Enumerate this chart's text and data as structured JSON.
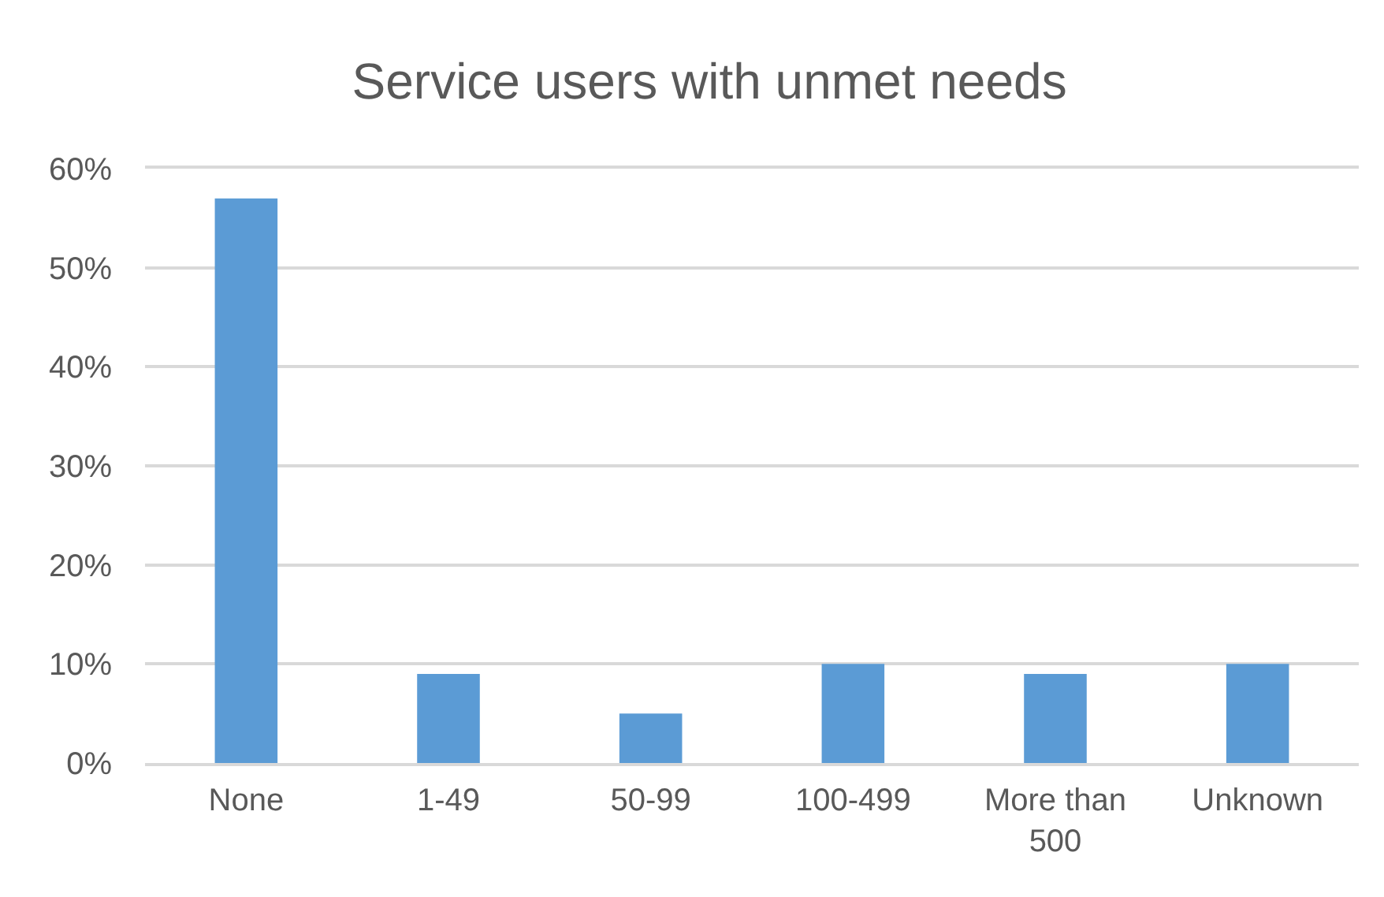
{
  "chart_data": {
    "type": "bar",
    "title": "Service users with unmet needs",
    "categories": [
      "None",
      "1-49",
      "50-99",
      "100-499",
      "More than 500",
      "Unknown"
    ],
    "values": [
      57,
      9,
      5,
      10,
      9,
      10
    ],
    "color": "#5b9bd5",
    "ylim": [
      0,
      60
    ],
    "yticks": [
      {
        "value": 0,
        "label": "0%"
      },
      {
        "value": 10,
        "label": "10%"
      },
      {
        "value": 20,
        "label": "20%"
      },
      {
        "value": 30,
        "label": "30%"
      },
      {
        "value": 40,
        "label": "40%"
      },
      {
        "value": 50,
        "label": "50%"
      },
      {
        "value": 60,
        "label": "60%"
      }
    ],
    "grid": "y"
  }
}
